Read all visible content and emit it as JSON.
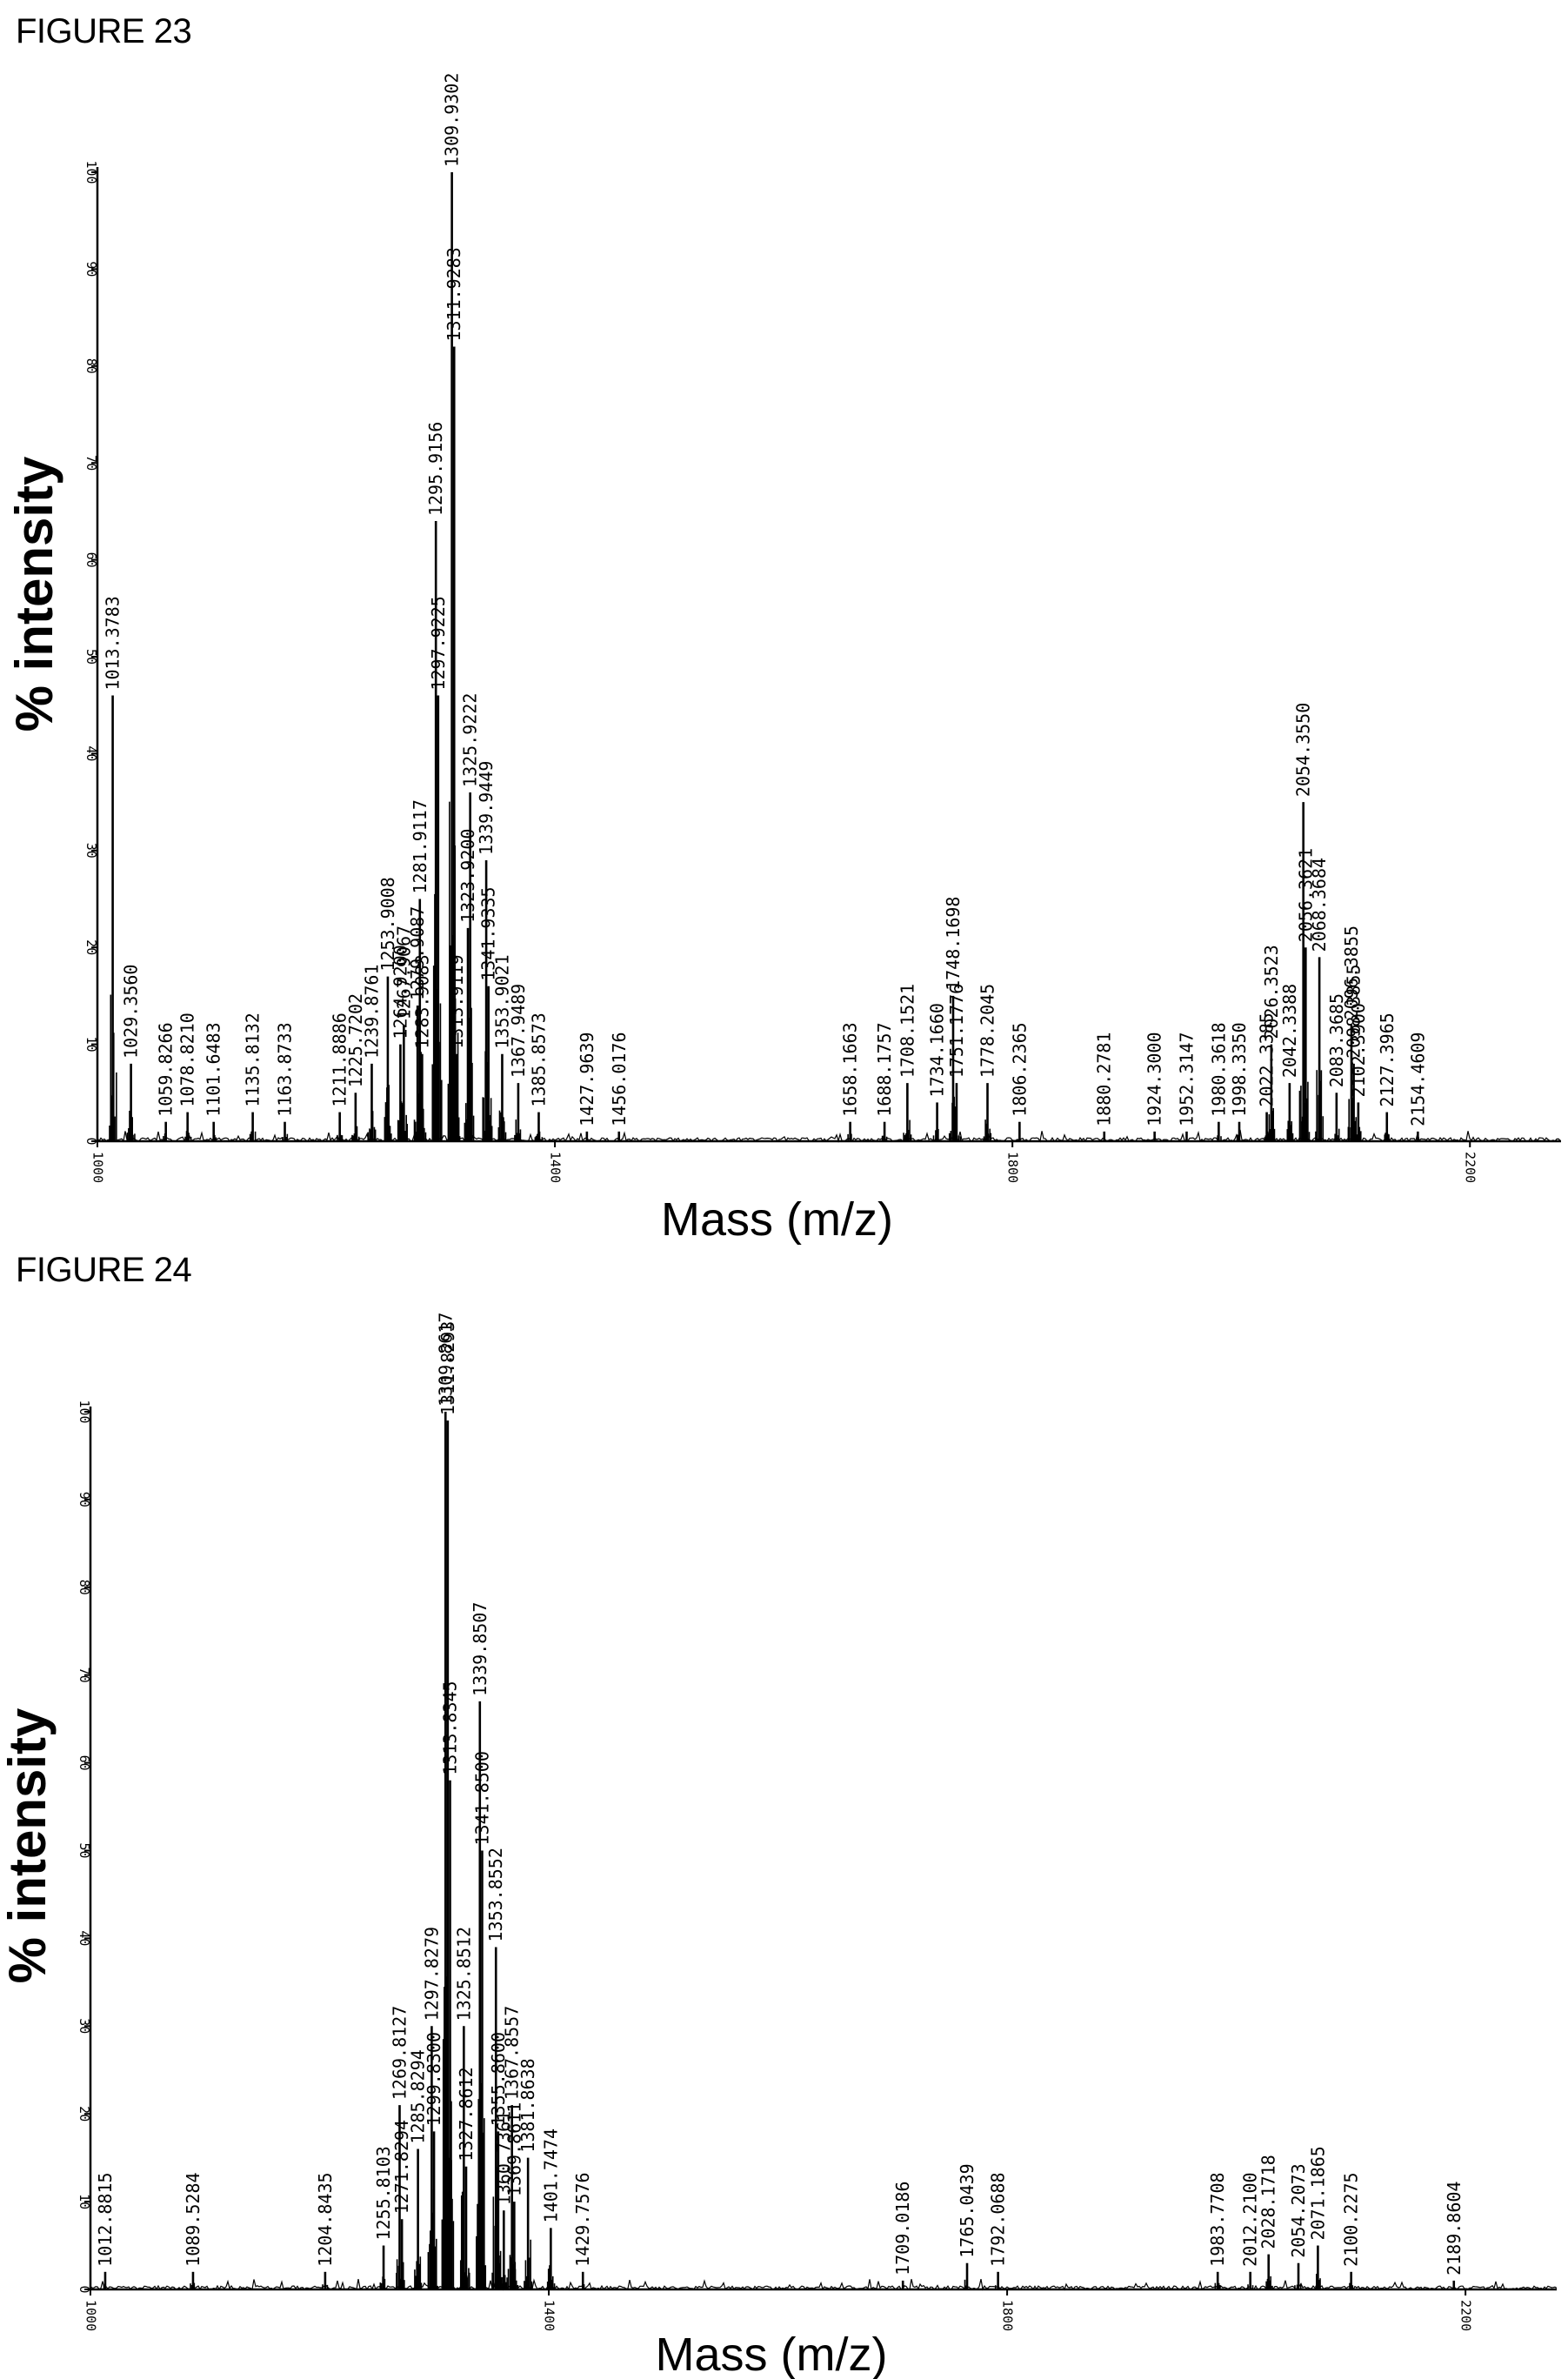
{
  "figures": [
    {
      "title": "FIGURE 23",
      "chart_data": {
        "type": "line",
        "title": "",
        "xlabel": "Mass (m/z)",
        "ylabel": "% intensity",
        "xlim": [
          1000,
          2250
        ],
        "ylim": [
          0,
          100
        ],
        "xticks": [
          "1000",
          "1400",
          "1800",
          "2200"
        ],
        "yticks": [
          "0",
          "10",
          "20",
          "30",
          "40",
          "50",
          "60",
          "70",
          "80",
          "90",
          "100"
        ],
        "grid": false,
        "peaks": [
          {
            "mz": 1013.3783,
            "i": 46,
            "label": "1013.3783"
          },
          {
            "mz": 1029.356,
            "i": 8,
            "label": "1029.3560"
          },
          {
            "mz": 1059.8266,
            "i": 2,
            "label": "1059.8266"
          },
          {
            "mz": 1078.821,
            "i": 3,
            "label": "1078.8210"
          },
          {
            "mz": 1101.6483,
            "i": 2,
            "label": "1101.6483"
          },
          {
            "mz": 1135.8132,
            "i": 3,
            "label": "1135.8132"
          },
          {
            "mz": 1163.8733,
            "i": 2,
            "label": "1163.8733"
          },
          {
            "mz": 1211.8886,
            "i": 3,
            "label": "1211.8886"
          },
          {
            "mz": 1225.7202,
            "i": 5,
            "label": "1225.7202"
          },
          {
            "mz": 1239.8761,
            "i": 8,
            "label": "1239.8761"
          },
          {
            "mz": 1253.9008,
            "i": 17,
            "label": "1253.9008"
          },
          {
            "mz": 1264.92,
            "i": 10,
            "label": "1264.9200"
          },
          {
            "mz": 1267.9067,
            "i": 12,
            "label": "1267.9067"
          },
          {
            "mz": 1279.9087,
            "i": 14,
            "label": "1279.9087"
          },
          {
            "mz": 1281.9117,
            "i": 25,
            "label": "1281.9117"
          },
          {
            "mz": 1283.9083,
            "i": 9,
            "label": "1283.9083"
          },
          {
            "mz": 1295.9156,
            "i": 64,
            "label": "1295.9156"
          },
          {
            "mz": 1297.9225,
            "i": 46,
            "label": "1297.9225"
          },
          {
            "mz": 1309.9302,
            "i": 100,
            "label": "1309.9302"
          },
          {
            "mz": 1311.9283,
            "i": 82,
            "label": "1311.9283"
          },
          {
            "mz": 1313.9119,
            "i": 9,
            "label": "1313.9119"
          },
          {
            "mz": 1323.92,
            "i": 22,
            "label": "1323.9200"
          },
          {
            "mz": 1325.9222,
            "i": 36,
            "label": "1325.9222"
          },
          {
            "mz": 1339.9449,
            "i": 29,
            "label": "1339.9449"
          },
          {
            "mz": 1341.9335,
            "i": 16,
            "label": "1341.9335"
          },
          {
            "mz": 1353.9021,
            "i": 9,
            "label": "1353.9021"
          },
          {
            "mz": 1367.9489,
            "i": 6,
            "label": "1367.9489"
          },
          {
            "mz": 1385.8573,
            "i": 3,
            "label": "1385.8573"
          },
          {
            "mz": 1427.9639,
            "i": 1,
            "label": "1427.9639"
          },
          {
            "mz": 1456.0176,
            "i": 1,
            "label": "1456.0176"
          },
          {
            "mz": 1658.1663,
            "i": 2,
            "label": "1658.1663"
          },
          {
            "mz": 1688.1757,
            "i": 2,
            "label": "1688.1757"
          },
          {
            "mz": 1708.1521,
            "i": 6,
            "label": "1708.1521"
          },
          {
            "mz": 1734.166,
            "i": 4,
            "label": "1734.1660"
          },
          {
            "mz": 1748.1698,
            "i": 15,
            "label": "1748.1698"
          },
          {
            "mz": 1751.1776,
            "i": 6,
            "label": "1751.1776"
          },
          {
            "mz": 1778.2045,
            "i": 6,
            "label": "1778.2045"
          },
          {
            "mz": 1806.2365,
            "i": 2,
            "label": "1806.2365"
          },
          {
            "mz": 1880.2781,
            "i": 1,
            "label": "1880.2781"
          },
          {
            "mz": 1924.3,
            "i": 1,
            "label": "1924.3000"
          },
          {
            "mz": 1952.3147,
            "i": 1,
            "label": "1952.3147"
          },
          {
            "mz": 1980.3618,
            "i": 2,
            "label": "1980.3618"
          },
          {
            "mz": 1998.335,
            "i": 2,
            "label": "1998.3350"
          },
          {
            "mz": 2022.3385,
            "i": 3,
            "label": "2022.3385"
          },
          {
            "mz": 2026.3523,
            "i": 10,
            "label": "2026.3523"
          },
          {
            "mz": 2042.3388,
            "i": 6,
            "label": "2042.3388"
          },
          {
            "mz": 2054.355,
            "i": 35,
            "label": "2054.3550"
          },
          {
            "mz": 2056.3621,
            "i": 20,
            "label": "2056.3621"
          },
          {
            "mz": 2068.3684,
            "i": 19,
            "label": "2068.3684"
          },
          {
            "mz": 2083.3685,
            "i": 5,
            "label": "2083.3685"
          },
          {
            "mz": 2096.3855,
            "i": 12,
            "label": "2096.3855"
          },
          {
            "mz": 2098.3855,
            "i": 8,
            "label": "2098.3855"
          },
          {
            "mz": 2102.39,
            "i": 4,
            "label": "2102.3900"
          },
          {
            "mz": 2127.3965,
            "i": 3,
            "label": "2127.3965"
          },
          {
            "mz": 2154.4609,
            "i": 1,
            "label": "2154.4609"
          }
        ]
      }
    },
    {
      "title": "FIGURE 24",
      "chart_data": {
        "type": "line",
        "title": "",
        "xlabel": "Mass (m/z)",
        "ylabel": "% intensity",
        "xlim": [
          1000,
          2250
        ],
        "ylim": [
          0,
          100
        ],
        "xticks": [
          "1000",
          "1400",
          "1800",
          "2200"
        ],
        "yticks": [
          "0",
          "10",
          "20",
          "30",
          "40",
          "50",
          "60",
          "70",
          "80",
          "90",
          "100"
        ],
        "grid": false,
        "peaks": [
          {
            "mz": 1012.8815,
            "i": 2,
            "label": "1012.8815"
          },
          {
            "mz": 1089.5284,
            "i": 2,
            "label": "1089.5284"
          },
          {
            "mz": 1204.8435,
            "i": 2,
            "label": "1204.8435"
          },
          {
            "mz": 1255.8103,
            "i": 5,
            "label": "1255.8103"
          },
          {
            "mz": 1271.8294,
            "i": 8,
            "label": "1271.8294"
          },
          {
            "mz": 1269.8127,
            "i": 21,
            "label": "1269.8127"
          },
          {
            "mz": 1285.8294,
            "i": 16,
            "label": "1285.8294"
          },
          {
            "mz": 1297.8279,
            "i": 30,
            "label": "1297.8279"
          },
          {
            "mz": 1299.83,
            "i": 18,
            "label": "1299.8300"
          },
          {
            "mz": 1309.8617,
            "i": 100,
            "label": "1309.8617"
          },
          {
            "mz": 1311.8293,
            "i": 99,
            "label": "1311.8293"
          },
          {
            "mz": 1313.8345,
            "i": 58,
            "label": "1313.8345"
          },
          {
            "mz": 1325.8512,
            "i": 30,
            "label": "1325.8512"
          },
          {
            "mz": 1327.8612,
            "i": 14,
            "label": "1327.8612"
          },
          {
            "mz": 1339.8507,
            "i": 67,
            "label": "1339.8507"
          },
          {
            "mz": 1341.85,
            "i": 50,
            "label": "1341.8500"
          },
          {
            "mz": 1353.8552,
            "i": 39,
            "label": "1353.8552"
          },
          {
            "mz": 1355.86,
            "i": 18,
            "label": "1355.8600"
          },
          {
            "mz": 1360.7361,
            "i": 9,
            "label": "1360.7361"
          },
          {
            "mz": 1367.8557,
            "i": 21,
            "label": "1367.8557"
          },
          {
            "mz": 1369.8611,
            "i": 10,
            "label": "1369.8611"
          },
          {
            "mz": 1381.8638,
            "i": 15,
            "label": "1381.8638"
          },
          {
            "mz": 1401.7474,
            "i": 7,
            "label": "1401.7474"
          },
          {
            "mz": 1429.7576,
            "i": 2,
            "label": "1429.7576"
          },
          {
            "mz": 1709.0186,
            "i": 1,
            "label": "1709.0186"
          },
          {
            "mz": 1765.0439,
            "i": 3,
            "label": "1765.0439"
          },
          {
            "mz": 1792.0688,
            "i": 2,
            "label": "1792.0688"
          },
          {
            "mz": 1983.7708,
            "i": 2,
            "label": "1983.7708"
          },
          {
            "mz": 2012.21,
            "i": 2,
            "label": "2012.2100"
          },
          {
            "mz": 2028.1718,
            "i": 4,
            "label": "2028.1718"
          },
          {
            "mz": 2054.2073,
            "i": 3,
            "label": "2054.2073"
          },
          {
            "mz": 2071.1865,
            "i": 5,
            "label": "2071.1865"
          },
          {
            "mz": 2100.2275,
            "i": 2,
            "label": "2100.2275"
          },
          {
            "mz": 2189.8604,
            "i": 1,
            "label": "2189.8604"
          }
        ]
      }
    }
  ]
}
